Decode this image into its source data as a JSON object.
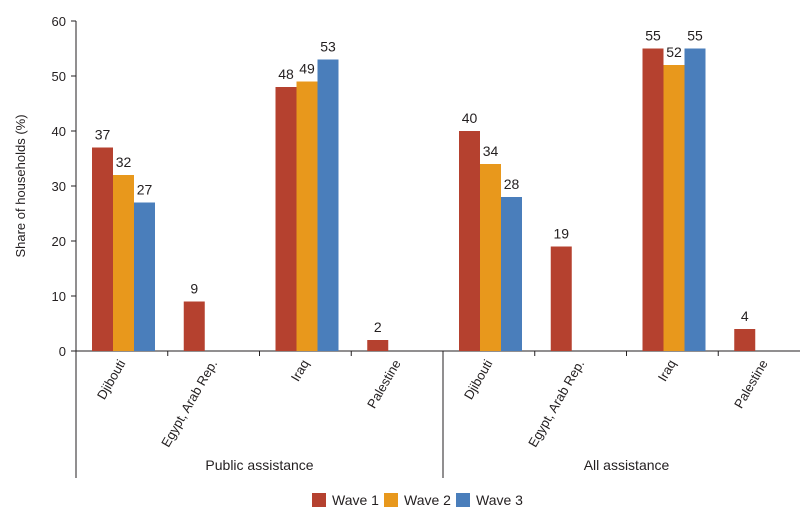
{
  "chart_data": {
    "type": "bar",
    "ylabel": "Share of households (%)",
    "ylim": [
      0,
      60
    ],
    "yticks": [
      0,
      10,
      20,
      30,
      40,
      50,
      60
    ],
    "grid": false,
    "legend_position": "bottom",
    "groups": [
      {
        "label": "Public assistance",
        "categories": [
          "Djibouti",
          "Egypt, Arab Rep.",
          "Iraq",
          "Palestine"
        ]
      },
      {
        "label": "All assistance",
        "categories": [
          "Djibouti",
          "Egypt, Arab Rep.",
          "Iraq",
          "Palestine"
        ]
      }
    ],
    "series": [
      {
        "name": "Wave 1",
        "color": "#b5412f",
        "values": [
          37,
          9,
          48,
          2,
          40,
          19,
          55,
          4
        ],
        "labels": [
          "37",
          "9",
          "48",
          "2",
          "40",
          "19",
          "55",
          "4"
        ]
      },
      {
        "name": "Wave 2",
        "color": "#e8981c",
        "values": [
          32,
          null,
          49,
          null,
          34,
          null,
          52,
          null
        ],
        "labels": [
          "32",
          "",
          "49",
          "",
          "34",
          "",
          "52",
          ""
        ]
      },
      {
        "name": "Wave 3",
        "color": "#4a7ebb",
        "values": [
          27,
          null,
          53,
          null,
          28,
          null,
          55,
          null
        ],
        "labels": [
          "27",
          "",
          "53",
          "",
          "28",
          "",
          "55",
          ""
        ]
      }
    ]
  }
}
